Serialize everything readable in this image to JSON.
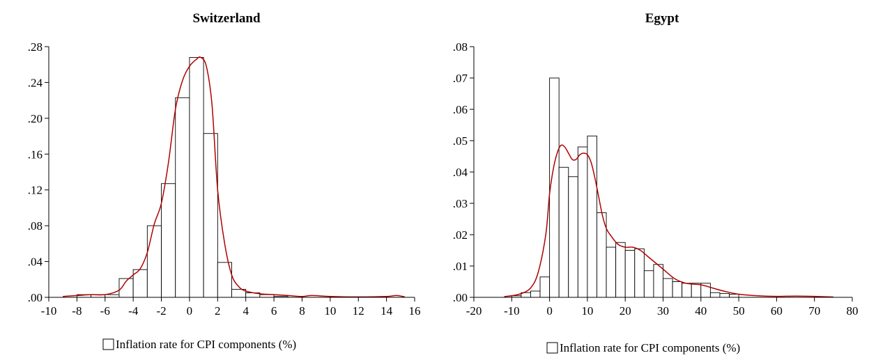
{
  "chart_data": [
    {
      "type": "bar",
      "title": "Switzerland",
      "xlabel": "",
      "ylabel": "",
      "legend": {
        "label": "Inflation rate for CPI components (%)",
        "position": "bottom-center"
      },
      "xlim": [
        -10,
        16
      ],
      "ylim": [
        0,
        0.28
      ],
      "xticks": [
        -10,
        -8,
        -6,
        -4,
        -2,
        0,
        2,
        4,
        6,
        8,
        10,
        12,
        14,
        16
      ],
      "xtick_labels": [
        "-10",
        "-8",
        "-6",
        "-4",
        "-2",
        "0",
        "2",
        "4",
        "6",
        "8",
        "10",
        "12",
        "14",
        "16"
      ],
      "yticks": [
        0,
        0.04,
        0.08,
        0.12,
        0.16,
        0.2,
        0.24,
        0.28
      ],
      "ytick_labels": [
        ".00",
        ".04",
        ".08",
        ".12",
        ".16",
        ".20",
        ".24",
        ".28"
      ],
      "bins": [
        {
          "x0": -8.0,
          "x1": -7.0,
          "value": 0.003
        },
        {
          "x0": -7.0,
          "x1": -6.0,
          "value": 0.003
        },
        {
          "x0": -6.0,
          "x1": -5.0,
          "value": 0.003
        },
        {
          "x0": -5.0,
          "x1": -4.0,
          "value": 0.021
        },
        {
          "x0": -4.0,
          "x1": -3.0,
          "value": 0.031
        },
        {
          "x0": -3.0,
          "x1": -2.0,
          "value": 0.08
        },
        {
          "x0": -2.0,
          "x1": -1.0,
          "value": 0.127
        },
        {
          "x0": -1.0,
          "x1": 0.0,
          "value": 0.223
        },
        {
          "x0": 0.0,
          "x1": 1.0,
          "value": 0.268
        },
        {
          "x0": 1.0,
          "x1": 2.0,
          "value": 0.183
        },
        {
          "x0": 2.0,
          "x1": 3.0,
          "value": 0.039
        },
        {
          "x0": 3.0,
          "x1": 4.0,
          "value": 0.009
        },
        {
          "x0": 4.0,
          "x1": 5.0,
          "value": 0.005
        },
        {
          "x0": 5.0,
          "x1": 6.0,
          "value": 0.003
        },
        {
          "x0": 6.0,
          "x1": 7.0,
          "value": 0.001
        }
      ],
      "density": {
        "x": [
          -9.0,
          -8.0,
          -7.0,
          -6.0,
          -5.0,
          -4.5,
          -4.0,
          -3.5,
          -3.0,
          -2.5,
          -2.0,
          -1.5,
          -1.0,
          -0.5,
          0.0,
          0.5,
          0.8,
          1.2,
          1.6,
          2.0,
          2.5,
          3.0,
          3.5,
          4.0,
          5.0,
          6.0,
          7.0,
          8.0,
          8.7,
          10.0,
          12.0,
          14.0,
          14.7,
          15.3
        ],
        "y": [
          0.001,
          0.002,
          0.003,
          0.003,
          0.008,
          0.018,
          0.025,
          0.032,
          0.05,
          0.082,
          0.105,
          0.15,
          0.21,
          0.242,
          0.258,
          0.266,
          0.268,
          0.258,
          0.215,
          0.12,
          0.06,
          0.025,
          0.012,
          0.007,
          0.004,
          0.003,
          0.002,
          0.001,
          0.002,
          0.001,
          0.0005,
          0.001,
          0.002,
          0.0005
        ]
      }
    },
    {
      "type": "bar",
      "title": "Egypt",
      "xlabel": "",
      "ylabel": "",
      "legend": {
        "label": "Inflation rate for CPI components (%)",
        "position": "bottom-center"
      },
      "xlim": [
        -20,
        80
      ],
      "ylim": [
        0,
        0.08
      ],
      "xticks": [
        -20,
        -10,
        0,
        10,
        20,
        30,
        40,
        50,
        60,
        70,
        80
      ],
      "xtick_labels": [
        "-20",
        "-10",
        "0",
        "10",
        "20",
        "30",
        "40",
        "50",
        "60",
        "70",
        "80"
      ],
      "yticks": [
        0,
        0.01,
        0.02,
        0.03,
        0.04,
        0.05,
        0.06,
        0.07,
        0.08
      ],
      "ytick_labels": [
        ".00",
        ".01",
        ".02",
        ".03",
        ".04",
        ".05",
        ".06",
        ".07",
        ".08"
      ],
      "bins": [
        {
          "x0": -10.0,
          "x1": -7.5,
          "value": 0.0005
        },
        {
          "x0": -7.5,
          "x1": -5.0,
          "value": 0.0015
        },
        {
          "x0": -5.0,
          "x1": -2.5,
          "value": 0.002
        },
        {
          "x0": -2.5,
          "x1": 0.0,
          "value": 0.0065
        },
        {
          "x0": 0.0,
          "x1": 2.5,
          "value": 0.07
        },
        {
          "x0": 2.5,
          "x1": 5.0,
          "value": 0.0415
        },
        {
          "x0": 5.0,
          "x1": 7.5,
          "value": 0.0385
        },
        {
          "x0": 7.5,
          "x1": 10.0,
          "value": 0.048
        },
        {
          "x0": 10.0,
          "x1": 12.5,
          "value": 0.0515
        },
        {
          "x0": 12.5,
          "x1": 15.0,
          "value": 0.027
        },
        {
          "x0": 15.0,
          "x1": 17.5,
          "value": 0.016
        },
        {
          "x0": 17.5,
          "x1": 20.0,
          "value": 0.0175
        },
        {
          "x0": 20.0,
          "x1": 22.5,
          "value": 0.015
        },
        {
          "x0": 22.5,
          "x1": 25.0,
          "value": 0.0155
        },
        {
          "x0": 25.0,
          "x1": 27.5,
          "value": 0.0085
        },
        {
          "x0": 27.5,
          "x1": 30.0,
          "value": 0.0105
        },
        {
          "x0": 30.0,
          "x1": 32.5,
          "value": 0.006
        },
        {
          "x0": 32.5,
          "x1": 35.0,
          "value": 0.005
        },
        {
          "x0": 35.0,
          "x1": 37.5,
          "value": 0.0045
        },
        {
          "x0": 37.5,
          "x1": 40.0,
          "value": 0.0045
        },
        {
          "x0": 40.0,
          "x1": 42.5,
          "value": 0.0045
        },
        {
          "x0": 42.5,
          "x1": 45.0,
          "value": 0.0015
        },
        {
          "x0": 45.0,
          "x1": 47.5,
          "value": 0.0012
        },
        {
          "x0": 47.5,
          "x1": 50.0,
          "value": 0.001
        }
      ],
      "density": {
        "x": [
          -12.0,
          -8.0,
          -5.0,
          -3.0,
          -1.0,
          0.0,
          1.0,
          2.0,
          3.0,
          4.0,
          5.0,
          6.0,
          7.0,
          8.0,
          9.0,
          10.0,
          11.0,
          12.0,
          13.0,
          14.0,
          15.0,
          16.0,
          18.0,
          20.0,
          22.0,
          24.0,
          26.0,
          28.0,
          30.0,
          33.0,
          36.0,
          40.0,
          43.0,
          46.0,
          50.0,
          55.0,
          60.0,
          65.0,
          70.0,
          75.0
        ],
        "y": [
          0.0002,
          0.001,
          0.003,
          0.008,
          0.02,
          0.033,
          0.041,
          0.046,
          0.0485,
          0.048,
          0.046,
          0.044,
          0.044,
          0.0455,
          0.046,
          0.0455,
          0.043,
          0.038,
          0.032,
          0.026,
          0.022,
          0.02,
          0.017,
          0.016,
          0.016,
          0.015,
          0.013,
          0.011,
          0.009,
          0.006,
          0.0045,
          0.004,
          0.003,
          0.002,
          0.001,
          0.0005,
          0.0003,
          0.0004,
          0.0003,
          0.0001
        ]
      }
    }
  ]
}
